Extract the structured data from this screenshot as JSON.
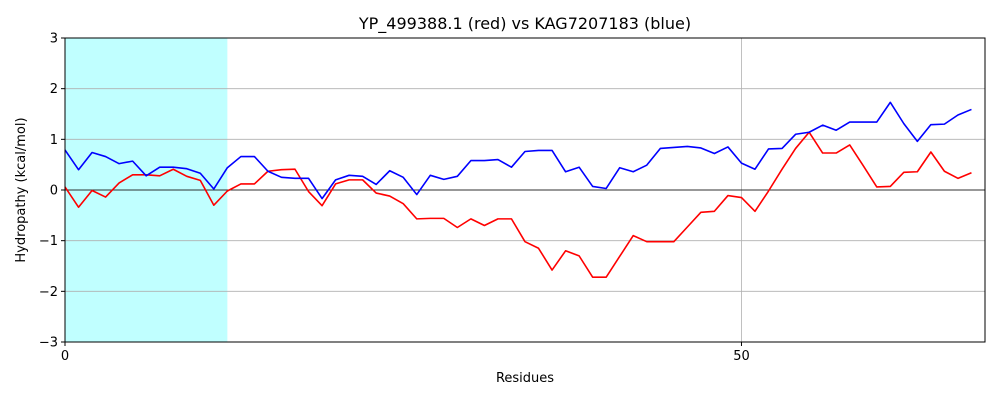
{
  "chart_data": {
    "type": "line",
    "title": "YP_499388.1 (red) vs KAG7207183 (blue)",
    "xlabel": "Residues",
    "ylabel": "Hydropathy (kcal/mol)",
    "xlim": [
      0,
      68
    ],
    "ylim": [
      -3,
      3
    ],
    "xticks": [
      0,
      50
    ],
    "yticks": [
      -3,
      -2,
      -1,
      0,
      1,
      2,
      3
    ],
    "grid": true,
    "zero_line": true,
    "highlight_region": {
      "x_start": 0,
      "x_end": 12,
      "color": "#c0ffff"
    },
    "series": [
      {
        "color": "#ff0000",
        "x": [
          0,
          1,
          2,
          3,
          4,
          5,
          6,
          7,
          8,
          9,
          10,
          11,
          12,
          13,
          14,
          15,
          16,
          17,
          18,
          19,
          20,
          21,
          22,
          23,
          24,
          25,
          26,
          27,
          28,
          29,
          30,
          31,
          32,
          33,
          34,
          35,
          36,
          37,
          38,
          39,
          40,
          41,
          42,
          43,
          44,
          45,
          46,
          47,
          48,
          49,
          50,
          51,
          52,
          53,
          54,
          55,
          56,
          57,
          58,
          59,
          60,
          61,
          62,
          63,
          64,
          65,
          66,
          67
        ],
        "values": [
          0.06,
          -0.34,
          -0.01,
          -0.14,
          0.14,
          0.3,
          0.3,
          0.28,
          0.41,
          0.27,
          0.19,
          -0.3,
          -0.02,
          0.12,
          0.12,
          0.37,
          0.4,
          0.41,
          -0.03,
          -0.31,
          0.12,
          0.2,
          0.2,
          -0.06,
          -0.12,
          -0.27,
          -0.57,
          -0.56,
          -0.56,
          -0.74,
          -0.57,
          -0.7,
          -0.57,
          -0.57,
          -1.02,
          -1.15,
          -1.58,
          -1.2,
          -1.3,
          -1.72,
          -1.72,
          -1.31,
          -0.9,
          -1.02,
          -1.02,
          -1.02,
          -0.73,
          -0.44,
          -0.42,
          -0.11,
          -0.15,
          -0.42,
          -0.02,
          0.41,
          0.82,
          1.14,
          0.73,
          0.73,
          0.89,
          0.48,
          0.06,
          0.07,
          0.35,
          0.36,
          0.75,
          0.37,
          0.23,
          0.34
        ]
      },
      {
        "color": "#0000ff",
        "x": [
          0,
          1,
          2,
          3,
          4,
          5,
          6,
          7,
          8,
          9,
          10,
          11,
          12,
          13,
          14,
          15,
          16,
          17,
          18,
          19,
          20,
          21,
          22,
          23,
          24,
          25,
          26,
          27,
          28,
          29,
          30,
          31,
          32,
          33,
          34,
          35,
          36,
          37,
          38,
          39,
          40,
          41,
          42,
          43,
          44,
          45,
          46,
          47,
          48,
          49,
          50,
          51,
          52,
          53,
          54,
          55,
          56,
          57,
          58,
          59,
          60,
          61,
          62,
          63,
          64,
          65,
          66,
          67
        ],
        "values": [
          0.79,
          0.4,
          0.74,
          0.66,
          0.52,
          0.57,
          0.28,
          0.45,
          0.45,
          0.42,
          0.33,
          0.02,
          0.44,
          0.66,
          0.66,
          0.37,
          0.25,
          0.23,
          0.23,
          -0.17,
          0.2,
          0.29,
          0.27,
          0.11,
          0.38,
          0.25,
          -0.09,
          0.29,
          0.21,
          0.27,
          0.58,
          0.58,
          0.6,
          0.45,
          0.76,
          0.78,
          0.78,
          0.36,
          0.45,
          0.07,
          0.03,
          0.44,
          0.36,
          0.49,
          0.82,
          0.84,
          0.86,
          0.83,
          0.72,
          0.85,
          0.53,
          0.41,
          0.81,
          0.82,
          1.1,
          1.14,
          1.28,
          1.18,
          1.34,
          1.34,
          1.34,
          1.73,
          1.31,
          0.96,
          1.29,
          1.3,
          1.48,
          1.59
        ]
      }
    ]
  }
}
